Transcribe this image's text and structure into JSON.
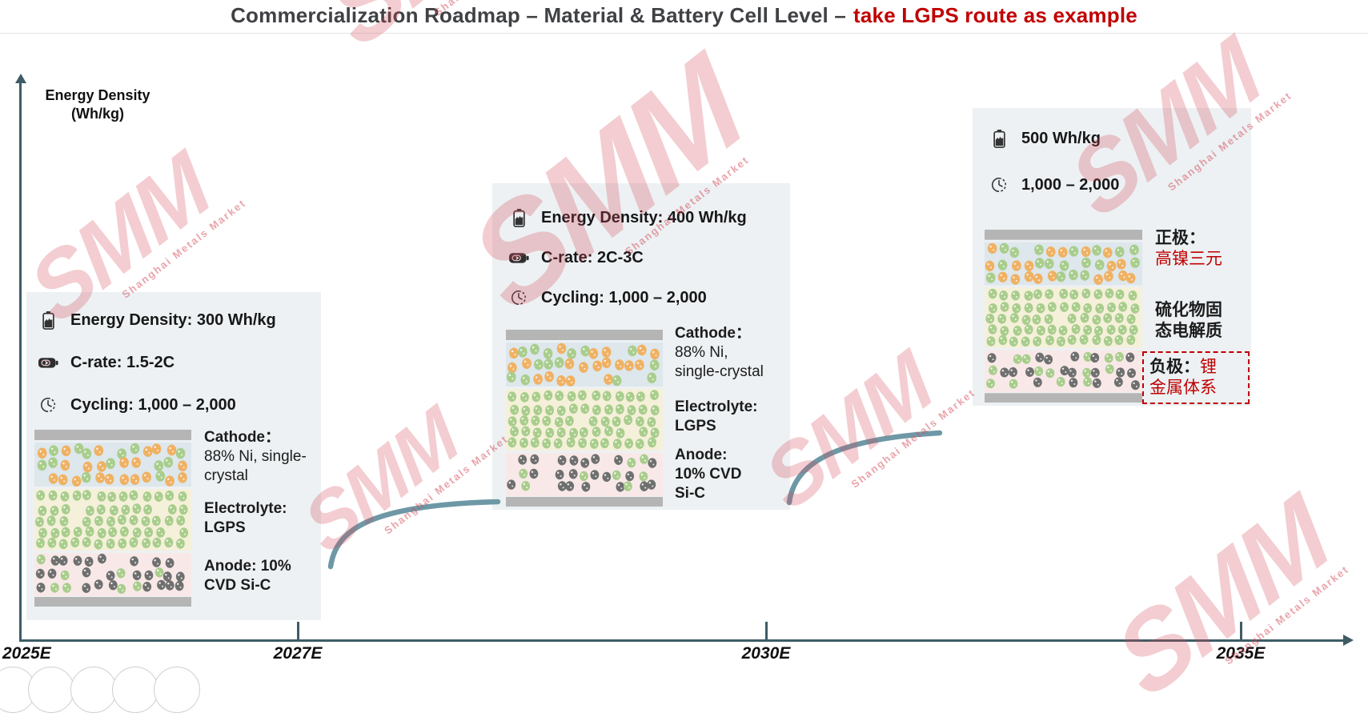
{
  "title": {
    "main": "Commercialization Roadmap – Material & Battery Cell Level –",
    "highlight": "take LGPS route as example"
  },
  "y_axis": {
    "label": "Energy Density\n(Wh/kg)"
  },
  "x_axis": {
    "ticks": [
      "2025E",
      "2027E",
      "2030E",
      "2035E"
    ]
  },
  "watermark": {
    "text": "SMM",
    "subtext": "Shanghai Metals Market",
    "color": "#d34a58"
  },
  "colors": {
    "accent_red": "#c00000",
    "axis": "#3f5c66",
    "connector": "#6e98a6",
    "stage_box_bg": "#edf1f3"
  },
  "stages": [
    {
      "specs": [
        {
          "icon": "battery-icon",
          "text": "Energy Density: 300 Wh/kg"
        },
        {
          "icon": "c-rate-battery-icon",
          "text": "C-rate: 1.5-2C"
        },
        {
          "icon": "clock-icon",
          "text": "Cycling: 1,000 – 2,000"
        }
      ],
      "annotation": {
        "cathode_head": "Cathode：",
        "cathode_body": "88% Ni, single-\ncrystal",
        "electrolyte_head": "Electrolyte:",
        "electrolyte_body": "LGPS",
        "anode_text": "Anode: 10%\nCVD Si-C"
      }
    },
    {
      "specs": [
        {
          "icon": "battery-icon",
          "text": "Energy Density: 400 Wh/kg"
        },
        {
          "icon": "c-rate-battery-icon",
          "text": "C-rate: 2C-3C"
        },
        {
          "icon": "clock-icon",
          "text": "Cycling: 1,000 – 2,000"
        }
      ],
      "annotation": {
        "cathode_head": "Cathode：",
        "cathode_body": "88% Ni,\nsingle-crystal",
        "electrolyte_head": "Electrolyte:",
        "electrolyte_body": "LGPS",
        "anode_text": "Anode:\n10% CVD\nSi-C"
      }
    },
    {
      "specs": [
        {
          "icon": "battery-icon",
          "text": "500 Wh/kg"
        },
        {
          "icon": "clock-icon",
          "text": "1,000 – 2,000"
        }
      ],
      "annotation": {
        "cathode_head": "正极：",
        "cathode_body": "高镍三元",
        "electrolyte_text": "硫化物固\n态电解质",
        "anode_head": "负极：",
        "anode_body": "锂\n金属体系"
      }
    }
  ],
  "diagram": {
    "collector": "#b5b5b5",
    "cathode": {
      "bg": "#dde7ec",
      "colors": [
        "#f0b163",
        "#a9cd8c"
      ]
    },
    "electrolyte": {
      "bg": "#f5f0da",
      "colors": [
        "#a9cd8c"
      ]
    },
    "anode": {
      "bg": "#f8e9e8",
      "colors": [
        "#6f6f6f",
        "#a9cd8c"
      ]
    }
  }
}
